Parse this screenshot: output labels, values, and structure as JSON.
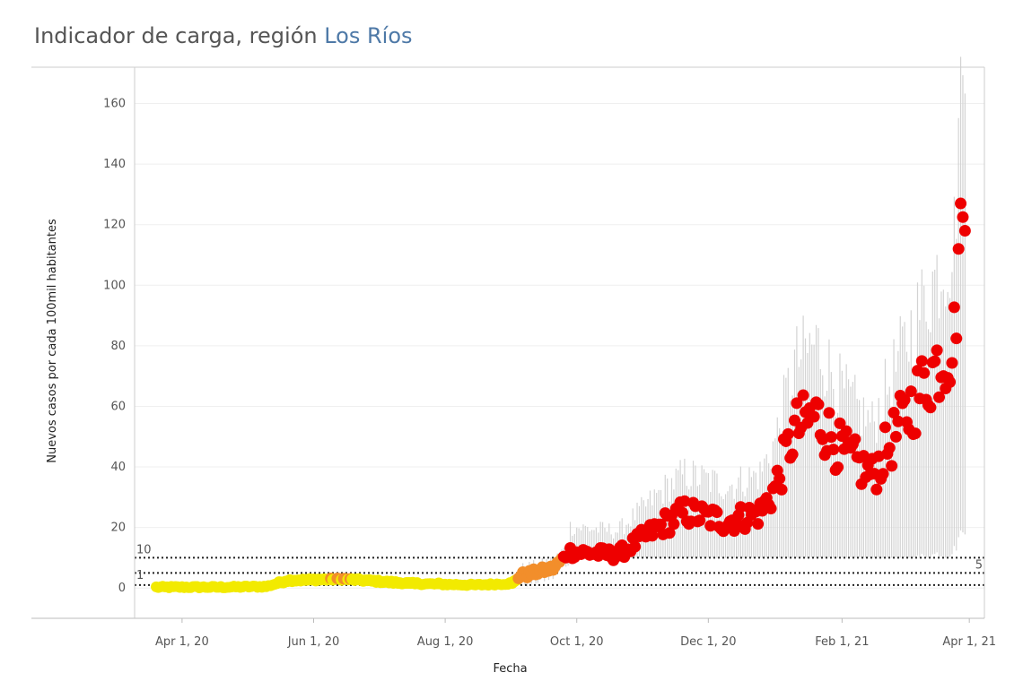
{
  "title": {
    "prefix": "Indicador de carga, región ",
    "region": "Los Ríos"
  },
  "colors": {
    "low": "#f2ea00",
    "mid": "#f28e2b",
    "high": "#ee0000",
    "range": "#d3d3d3",
    "region_link": "#4e79a7"
  },
  "chart_data": {
    "type": "scatter",
    "xlabel": "Fecha",
    "ylabel": "Nuevos casos por cada 100mil habitantes",
    "x_range": [
      "2020-03-10",
      "2021-04-08"
    ],
    "ylim": [
      -10,
      172
    ],
    "y_ticks": [
      0,
      20,
      40,
      60,
      80,
      100,
      120,
      140,
      160
    ],
    "x_ticks": [
      {
        "date": "2020-04-01",
        "label": "Apr 1, 20"
      },
      {
        "date": "2020-06-01",
        "label": "Jun 1, 20"
      },
      {
        "date": "2020-08-01",
        "label": "Aug 1, 20"
      },
      {
        "date": "2020-10-01",
        "label": "Oct 1, 20"
      },
      {
        "date": "2020-12-01",
        "label": "Dec 1, 20"
      },
      {
        "date": "2021-02-01",
        "label": "Feb 1, 21"
      },
      {
        "date": "2021-04-01",
        "label": "Apr 1, 21"
      }
    ],
    "reference_lines": [
      {
        "value": 10,
        "label": "10"
      },
      {
        "value": 5,
        "label": "5"
      },
      {
        "value": 1,
        "label": "1"
      }
    ],
    "grid": true,
    "key_points": [
      [
        "2020-03-20",
        0.3
      ],
      [
        "2020-04-20",
        0.3
      ],
      [
        "2020-05-10",
        0.5
      ],
      [
        "2020-05-20",
        2.5
      ],
      [
        "2020-06-15",
        3.0
      ],
      [
        "2020-07-15",
        1.5
      ],
      [
        "2020-08-15",
        1.0
      ],
      [
        "2020-09-01",
        1.5
      ],
      [
        "2020-09-05",
        4.0
      ],
      [
        "2020-09-20",
        6.5
      ],
      [
        "2020-09-28",
        12.0
      ],
      [
        "2020-10-20",
        11.0
      ],
      [
        "2020-11-10",
        21.0
      ],
      [
        "2020-11-20",
        25.0
      ],
      [
        "2020-12-10",
        22.0
      ],
      [
        "2020-12-25",
        25.0
      ],
      [
        "2021-01-01",
        33.0
      ],
      [
        "2021-01-10",
        52.0
      ],
      [
        "2021-01-20",
        57.0
      ],
      [
        "2021-02-01",
        45.0
      ],
      [
        "2021-02-15",
        37.0
      ],
      [
        "2021-03-01",
        55.0
      ],
      [
        "2021-03-15",
        72.0
      ],
      [
        "2021-03-25",
        82.0
      ],
      [
        "2021-03-28",
        127.0
      ],
      [
        "2021-03-30",
        118.0
      ]
    ]
  }
}
